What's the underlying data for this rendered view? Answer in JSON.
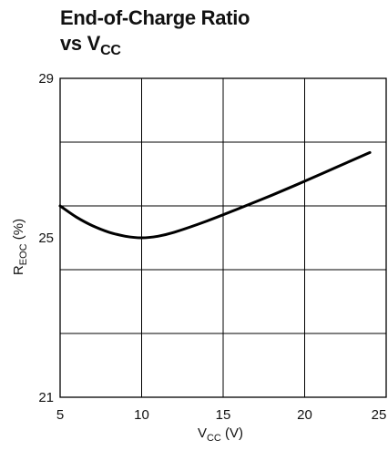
{
  "title": {
    "line1": "End-of-Charge Ratio",
    "line2_main": "vs V",
    "line2_sub": "CC"
  },
  "chart_data": {
    "type": "line",
    "title": "End-of-Charge Ratio vs VCC",
    "xlabel": {
      "main": "V",
      "sub": "CC",
      "unit": " (V)"
    },
    "ylabel": {
      "main": "R",
      "sub": "EOC",
      "unit": " (%)"
    },
    "xlim": [
      5,
      25
    ],
    "ylim": [
      21,
      29
    ],
    "x_ticks": [
      5,
      10,
      15,
      20,
      25
    ],
    "y_ticks": [
      21,
      25,
      29
    ],
    "x_grid": [
      5,
      10,
      15,
      20,
      25
    ],
    "y_grid": [
      21,
      22.6,
      24.2,
      25.8,
      27.4,
      29
    ],
    "grid": true,
    "series": [
      {
        "color": "#000000",
        "x": [
          5,
          6,
          7,
          8,
          9,
          10,
          11,
          12,
          14,
          16,
          18,
          20,
          22,
          24
        ],
        "y": [
          25.8,
          25.52,
          25.3,
          25.14,
          25.04,
          25.0,
          25.04,
          25.14,
          25.42,
          25.74,
          26.07,
          26.42,
          26.78,
          27.14
        ]
      }
    ]
  }
}
